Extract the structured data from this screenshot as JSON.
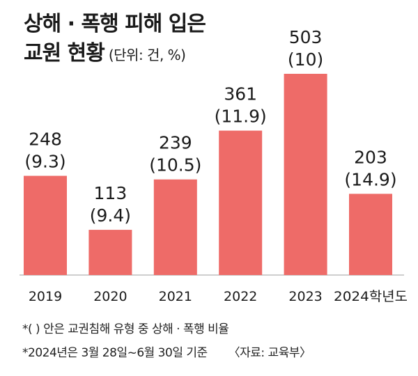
{
  "title": {
    "line1": "상해 · 폭행 피해 입은",
    "line2": "교원 현황",
    "unit": "(단위: 건, %)"
  },
  "chart_data": {
    "type": "bar",
    "categories": [
      "2019",
      "2020",
      "2021",
      "2022",
      "2023",
      "2024학년도"
    ],
    "values": [
      248,
      113,
      239,
      361,
      503,
      203
    ],
    "value_labels": [
      "248",
      "113",
      "239",
      "361",
      "503",
      "203"
    ],
    "percent_labels": [
      "(9.3)",
      "(9.4)",
      "(10.5)",
      "(11.9)",
      "(10)",
      "(14.9)"
    ],
    "ylim": [
      0,
      503
    ],
    "grid": false,
    "bar_color": "#ee6b68"
  },
  "notes": {
    "note1": "*(   ) 안은 교권침해 유형 중 상해 · 폭행 비율",
    "note2": "*2024년은 3월 28일~6월 30일 기준",
    "source": "〈자료: 교육부〉"
  }
}
